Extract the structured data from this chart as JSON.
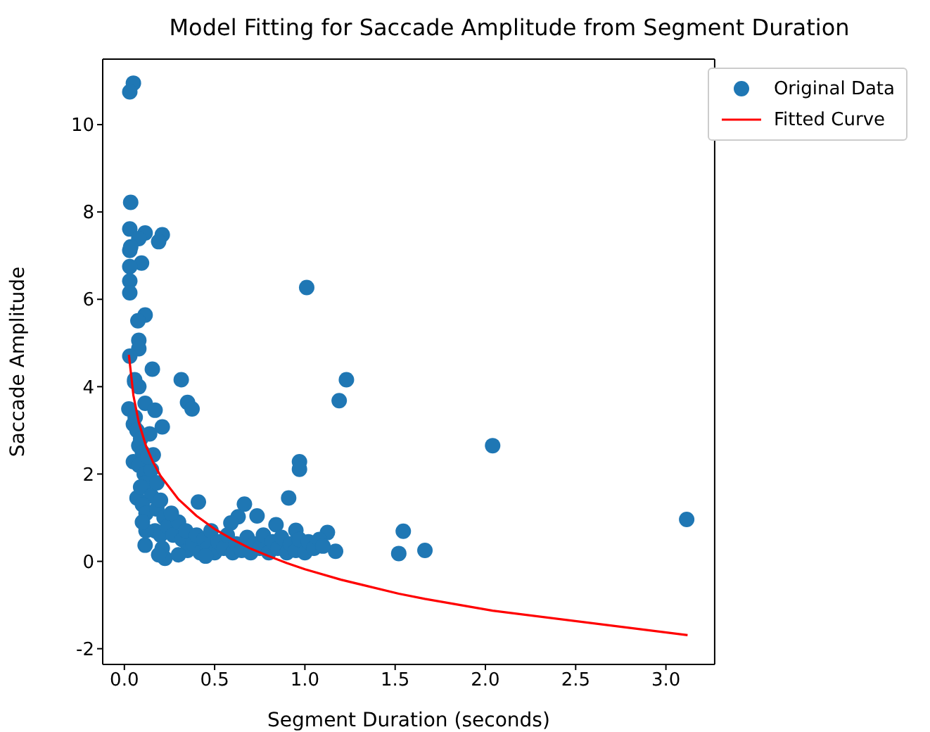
{
  "chart_data": {
    "type": "scatter",
    "title": "Model Fitting for Saccade Amplitude from Segment Duration",
    "xlabel": "Segment Duration (seconds)",
    "ylabel": "Saccade Amplitude",
    "xlim": [
      -0.12,
      3.27
    ],
    "ylim": [
      -2.36,
      11.5
    ],
    "xticks": [
      {
        "value": 0,
        "label": "0.0"
      },
      0.5,
      {
        "value": 1,
        "label": "1.0"
      },
      1.5,
      {
        "value": 2,
        "label": "2.0"
      },
      2.5,
      {
        "value": 3,
        "label": "3.0"
      }
    ],
    "yticks": [
      -2,
      0,
      2,
      4,
      6,
      8,
      10
    ],
    "legend": "top right",
    "series": [
      {
        "name": "Original Data",
        "marker": "circle",
        "color": "#1f77b4",
        "x": [
          0.05,
          0.03,
          0.035,
          0.03,
          0.115,
          0.08,
          0.21,
          0.19,
          0.03,
          0.035,
          0.095,
          0.03,
          0.03,
          0.03,
          1.01,
          0.115,
          0.075,
          0.08,
          0.08,
          0.03,
          0.155,
          0.315,
          1.23,
          0.057,
          0.08,
          1.19,
          0.35,
          0.375,
          0.057,
          0.025,
          0.115,
          0.17,
          0.21,
          0.05,
          0.14,
          0.08,
          0.05,
          0.16,
          0.97,
          0.97,
          0.91,
          0.07,
          0.41,
          0.665,
          0.735,
          0.63,
          0.59,
          0.95,
          0.84,
          1.125,
          1.17,
          0.115,
          0.225,
          2.04,
          3.115,
          1.545,
          1.52,
          1.665,
          0.06,
          0.07,
          0.09,
          0.1,
          0.08,
          0.11,
          0.12,
          0.09,
          0.15,
          0.1,
          0.12,
          0.18,
          0.2,
          0.22,
          0.17,
          0.2,
          0.24,
          0.21,
          0.19,
          0.27,
          0.3,
          0.32,
          0.34,
          0.35,
          0.38,
          0.4,
          0.42,
          0.44,
          0.46,
          0.48,
          0.5,
          0.52,
          0.55,
          0.57,
          0.6,
          0.62,
          0.65,
          0.68,
          0.7,
          0.72,
          0.75,
          0.77,
          0.8,
          0.82,
          0.85,
          0.87,
          0.9,
          0.92,
          0.95,
          0.97,
          1.0,
          1.02,
          1.05,
          1.08,
          1.1,
          0.26,
          0.15,
          0.13,
          0.18,
          0.3,
          0.45,
          0.12,
          0.1
        ],
        "values": [
          10.95,
          10.75,
          8.22,
          7.61,
          7.52,
          7.39,
          7.48,
          7.32,
          7.12,
          7.2,
          6.83,
          6.75,
          6.42,
          6.15,
          6.27,
          5.64,
          5.51,
          5.06,
          4.87,
          4.7,
          4.4,
          4.16,
          4.16,
          4.16,
          4.0,
          3.68,
          3.64,
          3.49,
          4.11,
          3.49,
          3.62,
          3.46,
          3.08,
          3.14,
          2.92,
          2.65,
          2.28,
          2.44,
          2.28,
          2.11,
          1.45,
          1.45,
          1.36,
          1.31,
          1.04,
          1.02,
          0.88,
          0.71,
          0.84,
          0.66,
          0.23,
          0.37,
          0.07,
          2.65,
          0.96,
          0.69,
          0.18,
          0.25,
          3.3,
          3.0,
          2.8,
          2.5,
          2.2,
          2.0,
          1.8,
          1.7,
          1.5,
          1.3,
          1.1,
          1.2,
          1.4,
          1.0,
          0.7,
          0.6,
          0.8,
          0.3,
          0.15,
          0.6,
          0.9,
          0.5,
          0.7,
          0.25,
          0.4,
          0.6,
          0.2,
          0.5,
          0.3,
          0.7,
          0.2,
          0.45,
          0.3,
          0.6,
          0.2,
          0.4,
          0.25,
          0.55,
          0.2,
          0.4,
          0.3,
          0.6,
          0.2,
          0.45,
          0.3,
          0.55,
          0.2,
          0.4,
          0.25,
          0.5,
          0.2,
          0.45,
          0.3,
          0.5,
          0.35,
          1.1,
          2.1,
          2.4,
          1.8,
          0.15,
          0.12,
          0.7,
          0.9
        ]
      },
      {
        "name": "Fitted Curve",
        "type": "line",
        "marker": "none",
        "color": "#ff0000",
        "x": [
          0.025,
          0.05,
          0.08,
          0.12,
          0.16,
          0.2,
          0.3,
          0.4,
          0.5,
          0.6,
          0.7,
          0.8,
          0.9,
          1.0,
          1.2,
          1.52,
          1.665,
          2.04,
          3.12
        ],
        "values": [
          4.73,
          3.8,
          3.18,
          2.64,
          2.26,
          1.96,
          1.42,
          1.04,
          0.74,
          0.5,
          0.29,
          0.12,
          -0.04,
          -0.18,
          -0.42,
          -0.74,
          -0.86,
          -1.13,
          -1.69
        ]
      }
    ]
  }
}
